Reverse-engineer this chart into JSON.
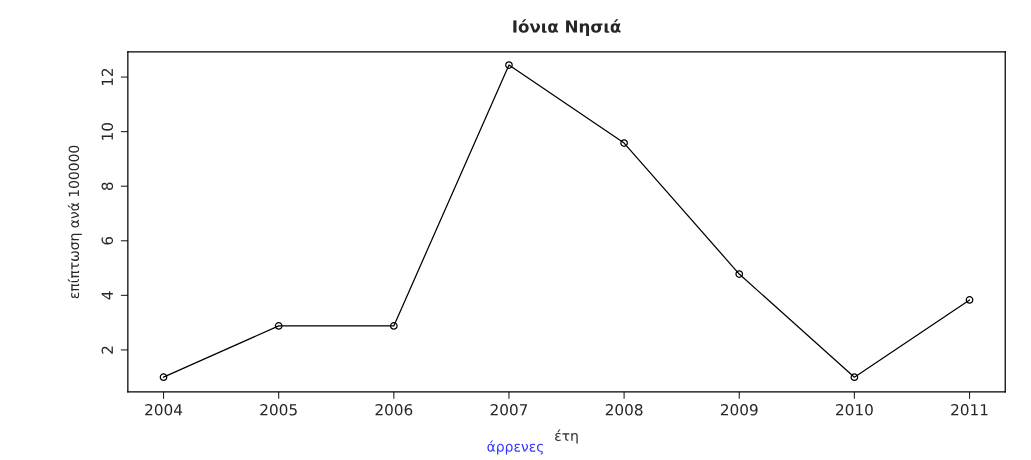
{
  "chart_data": {
    "type": "line",
    "title": "Ιόνια Νησιά",
    "xlabel": "έτη",
    "ylabel": "επίπτωση ανά 100000",
    "annotations": [
      "άρρενες"
    ],
    "x": [
      2004,
      2005,
      2006,
      2007,
      2008,
      2009,
      2010,
      2011
    ],
    "series": [
      {
        "color": "#000000",
        "values": [
          1.0,
          2.88,
          2.88,
          12.44,
          9.58,
          4.78,
          1.0,
          3.83
        ]
      }
    ],
    "xlim": [
      2003.69,
      2011.31
    ],
    "ylim": [
      0.46,
      12.92
    ],
    "xticks": [
      2004,
      2005,
      2006,
      2007,
      2008,
      2009,
      2010,
      2011
    ],
    "yticks": [
      2,
      4,
      6,
      8,
      10,
      12
    ],
    "marker": "circle",
    "line_style": "solid",
    "grid": false,
    "legend": false
  }
}
